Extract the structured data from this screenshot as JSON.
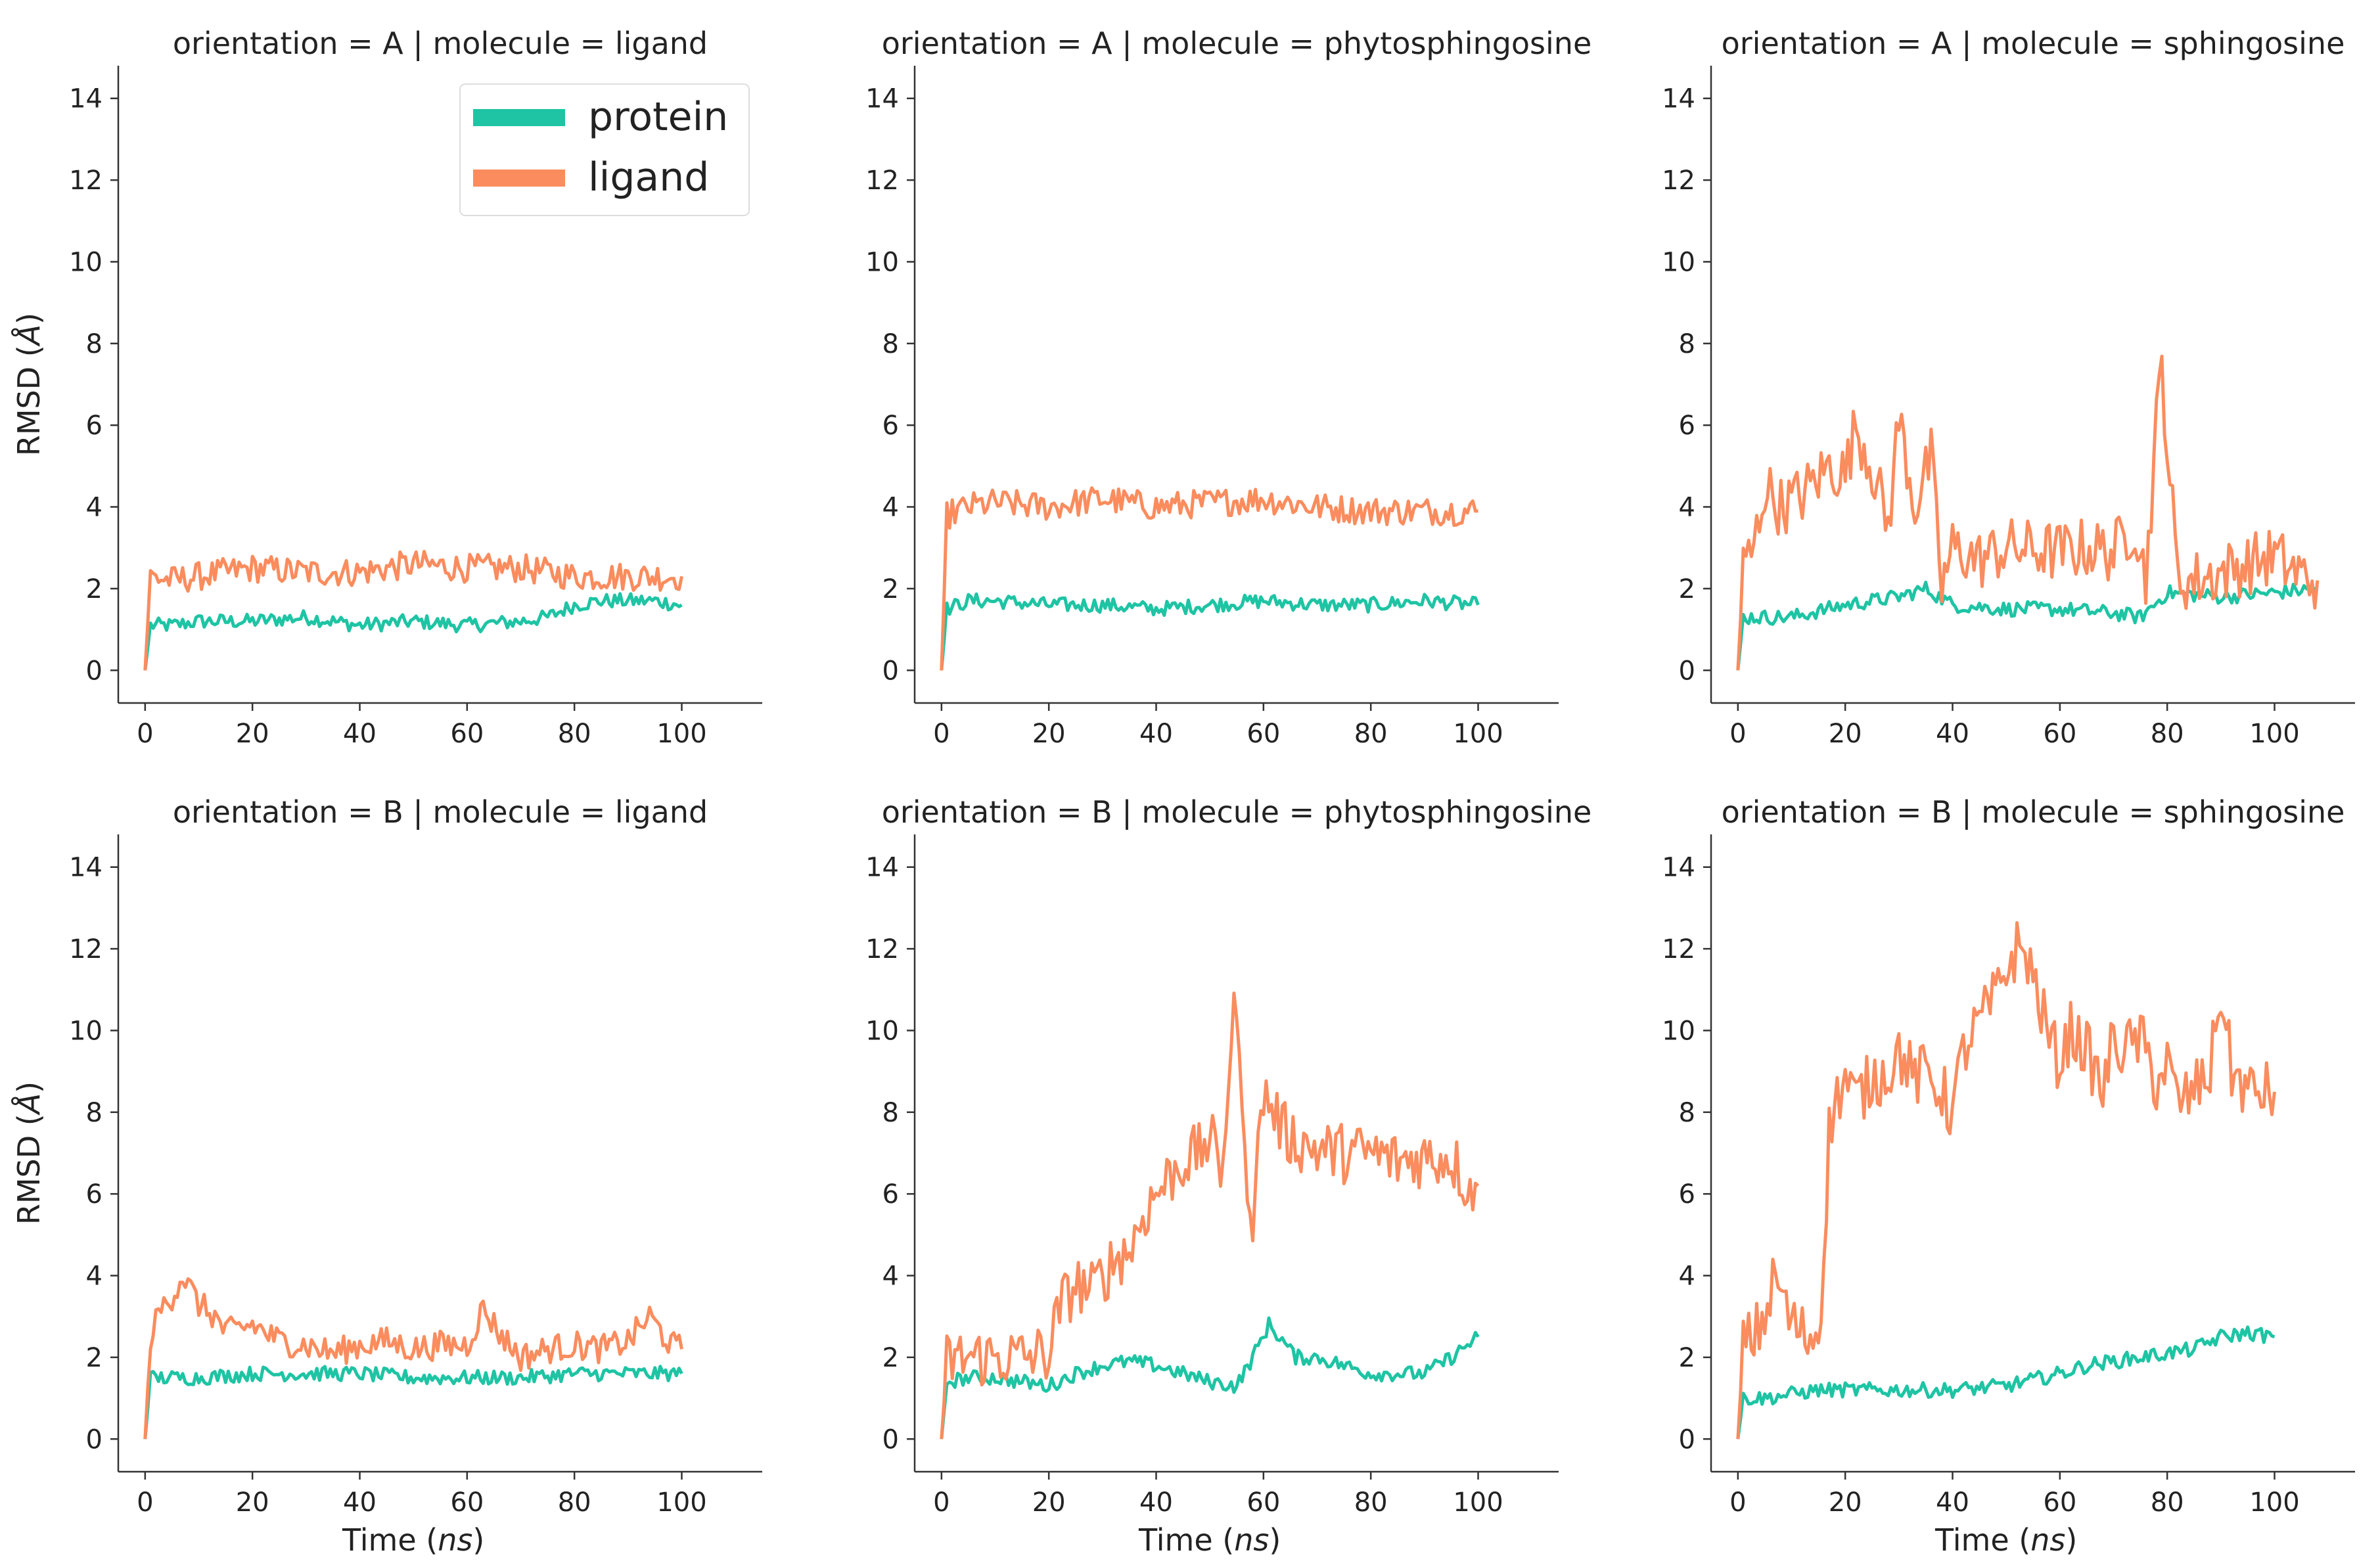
{
  "colors": {
    "protein": "#1ec4a4",
    "ligand": "#fa8c5e"
  },
  "axis_text": {
    "ylabel_main": "RMSD (",
    "ylabel_unit": "Å",
    "ylabel_close": ")",
    "xlabel_main": "Time (",
    "xlabel_unit": "ns",
    "xlabel_close": ")"
  },
  "legend": {
    "placement": "top-right of first panel",
    "entries": [
      {
        "label": "protein",
        "color": "#1ec4a4"
      },
      {
        "label": "ligand",
        "color": "#fa8c5e"
      }
    ]
  },
  "chart_data": [
    {
      "type": "line",
      "title": "orientation = A | molecule = ligand",
      "xlabel": "",
      "ylabel": "RMSD (Å)",
      "xlim": [
        -5,
        115
      ],
      "ylim": [
        -0.8,
        14.8
      ],
      "xticks": [
        0,
        20,
        40,
        60,
        80,
        100
      ],
      "yticks": [
        0,
        2,
        4,
        6,
        8,
        10,
        12,
        14
      ],
      "grid": false,
      "series": [
        {
          "name": "protein",
          "x": [
            0,
            1,
            5,
            10,
            20,
            30,
            40,
            50,
            60,
            70,
            75,
            80,
            85,
            90,
            95,
            100
          ],
          "y": [
            0,
            1.1,
            1.1,
            1.2,
            1.2,
            1.3,
            1.1,
            1.2,
            1.1,
            1.2,
            1.3,
            1.6,
            1.7,
            1.7,
            1.7,
            1.6
          ]
        },
        {
          "name": "ligand",
          "x": [
            0,
            1,
            5,
            10,
            20,
            30,
            40,
            50,
            60,
            70,
            80,
            90,
            100
          ],
          "y": [
            0,
            2.3,
            2.2,
            2.3,
            2.5,
            2.4,
            2.4,
            2.6,
            2.5,
            2.5,
            2.3,
            2.3,
            2.3
          ]
        }
      ]
    },
    {
      "type": "line",
      "title": "orientation = A | molecule = phytosphingosine",
      "xlabel": "",
      "ylabel": "",
      "xlim": [
        -5,
        115
      ],
      "ylim": [
        -0.8,
        14.8
      ],
      "xticks": [
        0,
        20,
        40,
        60,
        80,
        100
      ],
      "yticks": [
        0,
        2,
        4,
        6,
        8,
        10,
        12,
        14
      ],
      "grid": false,
      "series": [
        {
          "name": "protein",
          "x": [
            0,
            1,
            5,
            10,
            20,
            30,
            40,
            50,
            60,
            70,
            80,
            90,
            100
          ],
          "y": [
            0,
            1.5,
            1.7,
            1.7,
            1.6,
            1.6,
            1.5,
            1.6,
            1.7,
            1.6,
            1.6,
            1.7,
            1.6
          ]
        },
        {
          "name": "ligand",
          "x": [
            0,
            1,
            5,
            10,
            20,
            30,
            40,
            50,
            60,
            70,
            80,
            90,
            100
          ],
          "y": [
            0,
            3.8,
            4.0,
            4.1,
            4.0,
            4.2,
            4.0,
            4.1,
            4.2,
            4.0,
            3.9,
            3.9,
            3.9
          ]
        }
      ]
    },
    {
      "type": "line",
      "title": "orientation = A | molecule = sphingosine",
      "xlabel": "",
      "ylabel": "",
      "xlim": [
        -5,
        115
      ],
      "ylim": [
        -0.8,
        14.8
      ],
      "xticks": [
        0,
        20,
        40,
        60,
        80,
        100
      ],
      "yticks": [
        0,
        2,
        4,
        6,
        8,
        10,
        12,
        14
      ],
      "grid": false,
      "series": [
        {
          "name": "protein",
          "x": [
            0,
            1,
            10,
            20,
            30,
            35,
            40,
            50,
            60,
            70,
            75,
            80,
            90,
            100,
            108
          ],
          "y": [
            0,
            1.3,
            1.3,
            1.6,
            1.8,
            2.0,
            1.6,
            1.5,
            1.5,
            1.4,
            1.3,
            1.9,
            1.8,
            1.9,
            2.0
          ]
        },
        {
          "name": "ligand",
          "x": [
            0,
            1,
            3,
            5,
            8,
            12,
            17,
            20,
            22,
            25,
            28,
            30,
            33,
            36,
            38,
            40,
            45,
            50,
            60,
            65,
            70,
            74,
            76,
            78,
            79,
            80,
            82,
            85,
            90,
            95,
            100,
            104,
            108
          ],
          "y": [
            0,
            2.5,
            3.0,
            4.5,
            4.0,
            4.3,
            5.0,
            4.8,
            6.0,
            5.0,
            3.5,
            6.2,
            4.0,
            5.2,
            2.0,
            3.0,
            2.7,
            3.0,
            2.9,
            3.0,
            2.9,
            3.6,
            2.2,
            6.0,
            7.5,
            5.5,
            2.2,
            2.2,
            2.4,
            2.6,
            2.8,
            2.4,
            2.2
          ]
        }
      ]
    },
    {
      "type": "line",
      "title": "orientation = B | molecule = ligand",
      "xlabel": "Time (ns)",
      "ylabel": "RMSD (Å)",
      "xlim": [
        -5,
        115
      ],
      "ylim": [
        -0.8,
        14.8
      ],
      "xticks": [
        0,
        20,
        40,
        60,
        80,
        100
      ],
      "yticks": [
        0,
        2,
        4,
        6,
        8,
        10,
        12,
        14
      ],
      "grid": false,
      "series": [
        {
          "name": "protein",
          "x": [
            0,
            1,
            5,
            10,
            20,
            30,
            40,
            50,
            60,
            70,
            80,
            90,
            100
          ],
          "y": [
            0,
            1.5,
            1.5,
            1.5,
            1.6,
            1.6,
            1.6,
            1.5,
            1.5,
            1.5,
            1.6,
            1.6,
            1.6
          ]
        },
        {
          "name": "ligand",
          "x": [
            0,
            1,
            3,
            5,
            7,
            10,
            13,
            15,
            20,
            25,
            30,
            35,
            40,
            45,
            50,
            55,
            60,
            63,
            66,
            70,
            75,
            80,
            85,
            90,
            94,
            98,
            100
          ],
          "y": [
            0,
            2.5,
            3.2,
            3.5,
            4.0,
            3.3,
            3.0,
            2.6,
            2.8,
            2.4,
            2.3,
            2.1,
            2.3,
            2.4,
            2.2,
            2.3,
            2.3,
            3.2,
            2.6,
            2.0,
            2.2,
            2.3,
            2.2,
            2.4,
            3.0,
            2.3,
            2.2
          ]
        }
      ]
    },
    {
      "type": "line",
      "title": "orientation = B | molecule = phytosphingosine",
      "xlabel": "Time (ns)",
      "ylabel": "",
      "xlim": [
        -5,
        115
      ],
      "ylim": [
        -0.8,
        14.8
      ],
      "xticks": [
        0,
        20,
        40,
        60,
        80,
        100
      ],
      "yticks": [
        0,
        2,
        4,
        6,
        8,
        10,
        12,
        14
      ],
      "grid": false,
      "series": [
        {
          "name": "protein",
          "x": [
            0,
            1,
            5,
            10,
            20,
            25,
            30,
            35,
            40,
            45,
            50,
            55,
            58,
            61,
            63,
            66,
            70,
            75,
            80,
            85,
            90,
            95,
            100
          ],
          "y": [
            0,
            1.4,
            1.5,
            1.5,
            1.3,
            1.6,
            1.8,
            1.9,
            1.8,
            1.6,
            1.4,
            1.3,
            2.0,
            2.8,
            2.5,
            2.0,
            2.0,
            1.8,
            1.6,
            1.6,
            1.6,
            2.0,
            2.5
          ]
        },
        {
          "name": "ligand",
          "x": [
            0,
            1,
            5,
            10,
            15,
            20,
            22,
            25,
            28,
            30,
            33,
            35,
            38,
            40,
            43,
            45,
            48,
            50,
            52,
            54,
            55,
            56,
            58,
            60,
            62,
            64,
            66,
            70,
            75,
            80,
            85,
            90,
            95,
            98,
            100
          ],
          "y": [
            0,
            1.9,
            2.0,
            2.0,
            2.0,
            2.1,
            3.2,
            3.8,
            3.6,
            4.0,
            4.5,
            4.6,
            5.6,
            6.0,
            6.5,
            6.8,
            7.0,
            7.4,
            6.5,
            9.5,
            11.0,
            7.5,
            5.5,
            8.5,
            8.0,
            7.5,
            7.3,
            7.1,
            7.0,
            7.0,
            6.8,
            6.9,
            6.9,
            6.2,
            6.2
          ]
        }
      ]
    },
    {
      "type": "line",
      "title": "orientation = B | molecule = sphingosine",
      "xlabel": "Time (ns)",
      "ylabel": "",
      "xlim": [
        -5,
        115
      ],
      "ylim": [
        -0.8,
        14.8
      ],
      "xticks": [
        0,
        20,
        40,
        60,
        80,
        100
      ],
      "yticks": [
        0,
        2,
        4,
        6,
        8,
        10,
        12,
        14
      ],
      "grid": false,
      "series": [
        {
          "name": "protein",
          "x": [
            0,
            1,
            5,
            10,
            15,
            20,
            30,
            40,
            50,
            60,
            65,
            70,
            75,
            80,
            85,
            90,
            95,
            100
          ],
          "y": [
            0,
            1.0,
            1.0,
            1.1,
            1.2,
            1.2,
            1.2,
            1.2,
            1.3,
            1.6,
            1.8,
            1.9,
            2.0,
            2.1,
            2.2,
            2.5,
            2.6,
            2.5
          ]
        },
        {
          "name": "ligand",
          "x": [
            0,
            1,
            3,
            5,
            7,
            10,
            13,
            15,
            16,
            17,
            18,
            20,
            22,
            25,
            28,
            30,
            33,
            35,
            38,
            40,
            42,
            45,
            48,
            50,
            52,
            54,
            56,
            58,
            60,
            62,
            65,
            68,
            70,
            72,
            75,
            78,
            80,
            82,
            85,
            88,
            90,
            92,
            95,
            98,
            100
          ],
          "y": [
            0,
            2.3,
            2.5,
            3.0,
            4.0,
            2.8,
            2.5,
            2.6,
            4.5,
            7.5,
            8.2,
            8.8,
            8.3,
            8.8,
            9.0,
            9.5,
            8.8,
            9.0,
            8.5,
            8.0,
            9.5,
            10.2,
            10.8,
            11.5,
            12.0,
            11.8,
            10.8,
            9.8,
            9.2,
            10.0,
            9.5,
            8.5,
            9.8,
            9.5,
            9.8,
            8.7,
            9.2,
            8.2,
            8.5,
            9.0,
            11.0,
            9.0,
            8.5,
            8.5,
            8.5
          ]
        }
      ]
    }
  ]
}
